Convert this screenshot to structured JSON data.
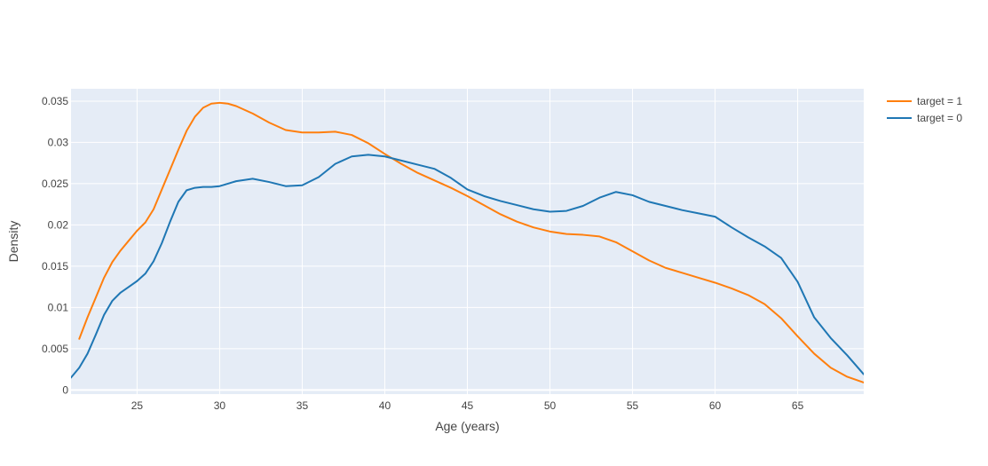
{
  "chart_data": {
    "type": "line",
    "title": "",
    "xlabel": "Age (years)",
    "ylabel": "Density",
    "xlim": [
      21,
      69
    ],
    "ylim": [
      -0.0005,
      0.0365
    ],
    "x_ticks": [
      25,
      30,
      35,
      40,
      45,
      50,
      55,
      60,
      65
    ],
    "x_tick_labels": [
      "25",
      "30",
      "35",
      "40",
      "45",
      "50",
      "55",
      "60",
      "65"
    ],
    "y_ticks": [
      0,
      0.005,
      0.01,
      0.015,
      0.02,
      0.025,
      0.03,
      0.035
    ],
    "y_tick_labels": [
      "0",
      "0.005",
      "0.01",
      "0.015",
      "0.02",
      "0.025",
      "0.03",
      "0.035"
    ],
    "grid": true,
    "legend_position": "top-right, outside plot",
    "plot_background": "#e5ecf6",
    "grid_color": "#ffffff",
    "series": [
      {
        "name": "target = 1",
        "color": "#ff7f0e",
        "x": [
          21.5,
          22,
          22.5,
          23,
          23.5,
          24,
          24.5,
          25,
          25.5,
          26,
          26.5,
          27,
          27.5,
          28,
          28.5,
          29,
          29.5,
          30,
          30.5,
          31,
          32,
          33,
          34,
          35,
          36,
          37,
          38,
          39,
          40,
          41,
          42,
          43,
          44,
          45,
          46,
          47,
          48,
          49,
          50,
          51,
          52,
          53,
          54,
          55,
          56,
          57,
          58,
          59,
          60,
          61,
          62,
          63,
          64,
          65,
          66,
          67,
          68,
          69
        ],
        "y": [
          0.0062,
          0.0088,
          0.0112,
          0.0136,
          0.0155,
          0.0169,
          0.0181,
          0.0193,
          0.0203,
          0.0219,
          0.0243,
          0.0267,
          0.0291,
          0.0314,
          0.0331,
          0.0342,
          0.0347,
          0.0348,
          0.0347,
          0.0344,
          0.0335,
          0.0324,
          0.0315,
          0.0312,
          0.0312,
          0.0313,
          0.0309,
          0.0299,
          0.0286,
          0.0274,
          0.0263,
          0.0254,
          0.0245,
          0.0235,
          0.0224,
          0.0213,
          0.0204,
          0.0197,
          0.0192,
          0.0189,
          0.0188,
          0.0186,
          0.0179,
          0.0168,
          0.0157,
          0.0148,
          0.0142,
          0.0136,
          0.013,
          0.0123,
          0.0115,
          0.0104,
          0.0087,
          0.0065,
          0.0044,
          0.0027,
          0.0016,
          0.0009
        ]
      },
      {
        "name": "target = 0",
        "color": "#1f77b4",
        "x": [
          21,
          21.5,
          22,
          22.5,
          23,
          23.5,
          24,
          24.5,
          25,
          25.5,
          26,
          26.5,
          27,
          27.5,
          28,
          28.5,
          29,
          29.5,
          30,
          31,
          32,
          33,
          34,
          35,
          36,
          37,
          38,
          39,
          40,
          41,
          42,
          43,
          44,
          45,
          46,
          47,
          48,
          49,
          50,
          51,
          52,
          53,
          54,
          55,
          56,
          57,
          58,
          59,
          60,
          61,
          62,
          63,
          64,
          65,
          66,
          67,
          68,
          69
        ],
        "y": [
          0.0015,
          0.0027,
          0.0044,
          0.0067,
          0.0091,
          0.0108,
          0.0118,
          0.0125,
          0.0132,
          0.0141,
          0.0156,
          0.0178,
          0.0204,
          0.0228,
          0.0242,
          0.0245,
          0.0246,
          0.0246,
          0.0247,
          0.0253,
          0.0256,
          0.0252,
          0.0247,
          0.0248,
          0.0258,
          0.0274,
          0.0283,
          0.0285,
          0.0283,
          0.0278,
          0.0273,
          0.0268,
          0.0257,
          0.0243,
          0.0235,
          0.0229,
          0.0224,
          0.0219,
          0.0216,
          0.0217,
          0.0223,
          0.0233,
          0.024,
          0.0236,
          0.0228,
          0.0223,
          0.0218,
          0.0214,
          0.021,
          0.0197,
          0.0185,
          0.0174,
          0.016,
          0.0131,
          0.0088,
          0.0063,
          0.0042,
          0.0019
        ]
      }
    ]
  }
}
